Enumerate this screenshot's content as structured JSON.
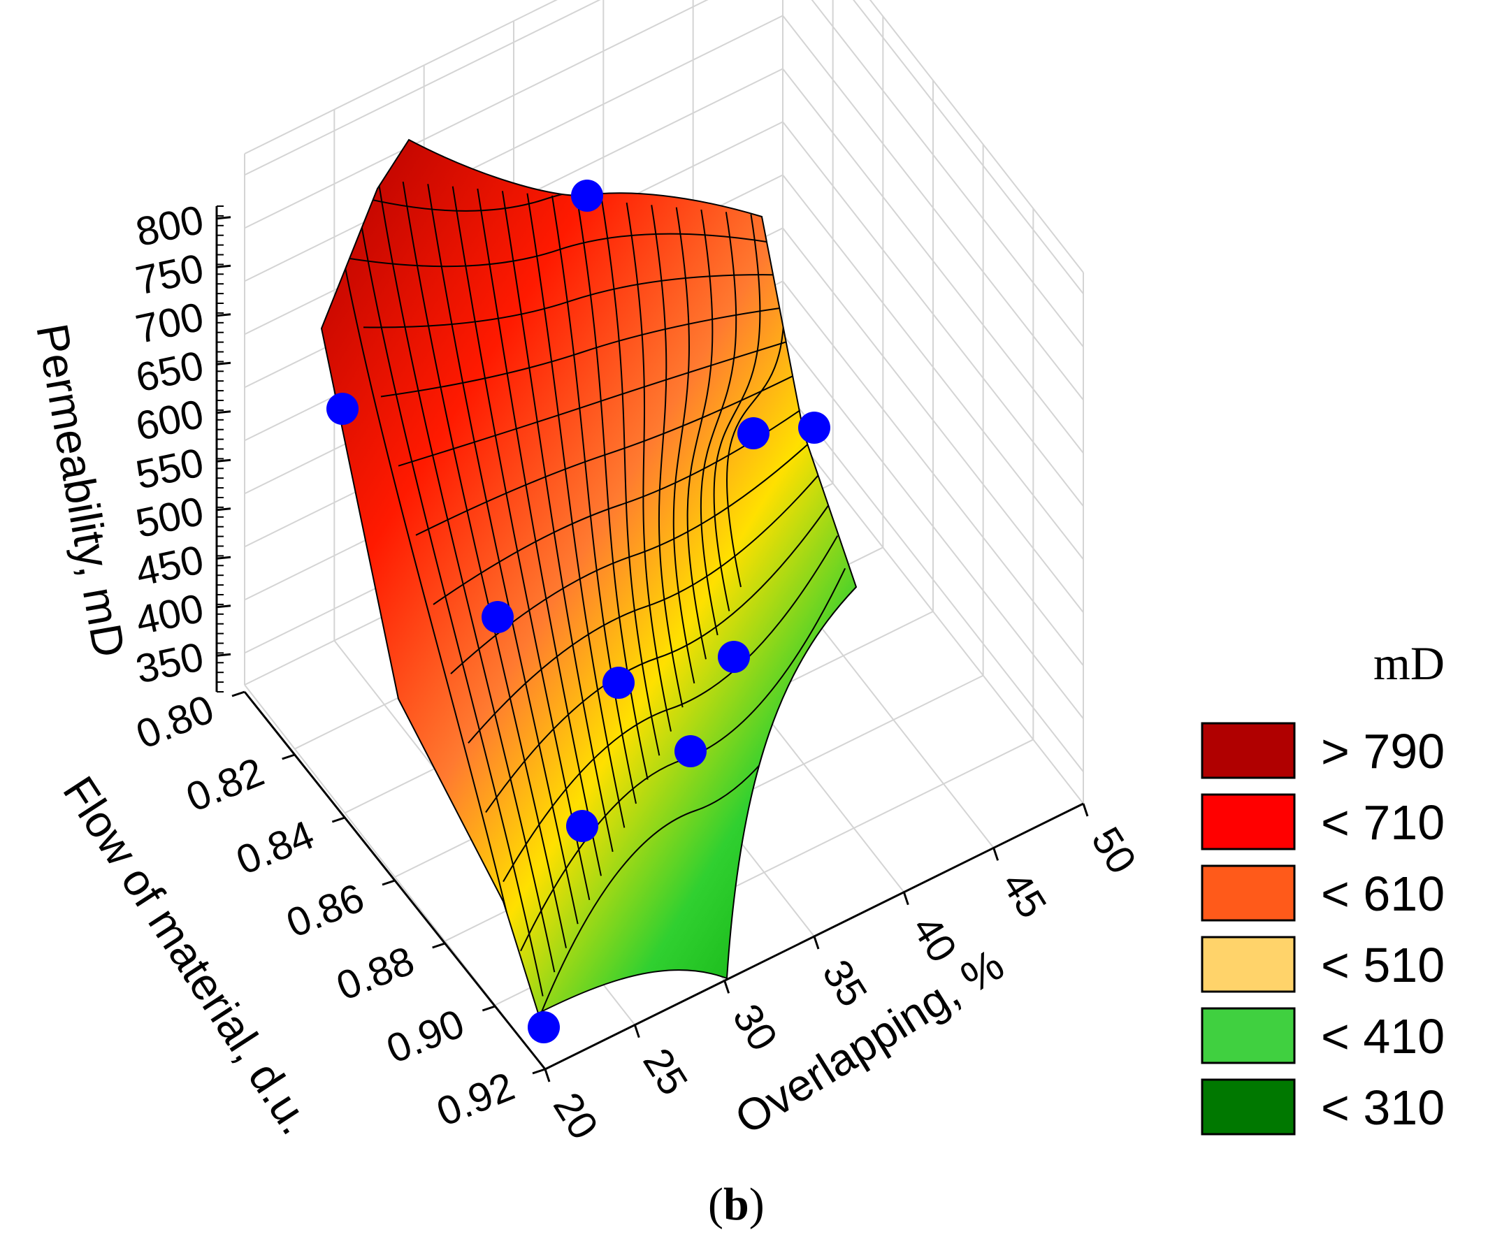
{
  "chart_data": {
    "type": "surface3d",
    "title": "",
    "zlabel": "Permeability, mD",
    "ylabel": "Flow of material, d.u.",
    "xlabel": "Overlapping, %",
    "z_ticks": [
      "800",
      "750",
      "700",
      "650",
      "600",
      "550",
      "500",
      "450",
      "400",
      "350"
    ],
    "y_ticks": [
      "0.80",
      "0.82",
      "0.84",
      "0.86",
      "0.88",
      "0.90",
      "0.92"
    ],
    "x_ticks": [
      "20",
      "25",
      "30",
      "35",
      "40",
      "45",
      "50"
    ],
    "zlim": [
      320,
      820
    ],
    "ylim": [
      0.8,
      0.92
    ],
    "xlim": [
      20,
      50
    ],
    "points": [
      {
        "overlap": 20,
        "flow": 0.8,
        "perm": 620
      },
      {
        "overlap": 25,
        "flow": 0.8,
        "perm": 810
      },
      {
        "overlap": 30,
        "flow": 0.8,
        "perm": 580
      },
      {
        "overlap": 30,
        "flow": 0.815,
        "perm": 590
      },
      {
        "overlap": 20,
        "flow": 0.86,
        "perm": 540
      },
      {
        "overlap": 25,
        "flow": 0.86,
        "perm": 480
      },
      {
        "overlap": 30,
        "flow": 0.86,
        "perm": 430
      },
      {
        "overlap": 25,
        "flow": 0.88,
        "perm": 370
      },
      {
        "overlap": 20,
        "flow": 0.9,
        "perm": 440
      },
      {
        "overlap": 20,
        "flow": 0.92,
        "perm": 350
      }
    ],
    "legend": {
      "title": "mD",
      "entries": [
        {
          "label": "> 790",
          "color": "#b00000"
        },
        {
          "label": "< 710",
          "color": "#ff0000"
        },
        {
          "label": "< 610",
          "color": "#ff5a1a"
        },
        {
          "label": "< 510",
          "color": "#ffd36a"
        },
        {
          "label": "< 410",
          "color": "#40d040"
        },
        {
          "label": "< 310",
          "color": "#007800"
        }
      ]
    },
    "point_color": "#0000ff"
  },
  "caption": {
    "open": "(",
    "letter": "b",
    "close": ")"
  }
}
